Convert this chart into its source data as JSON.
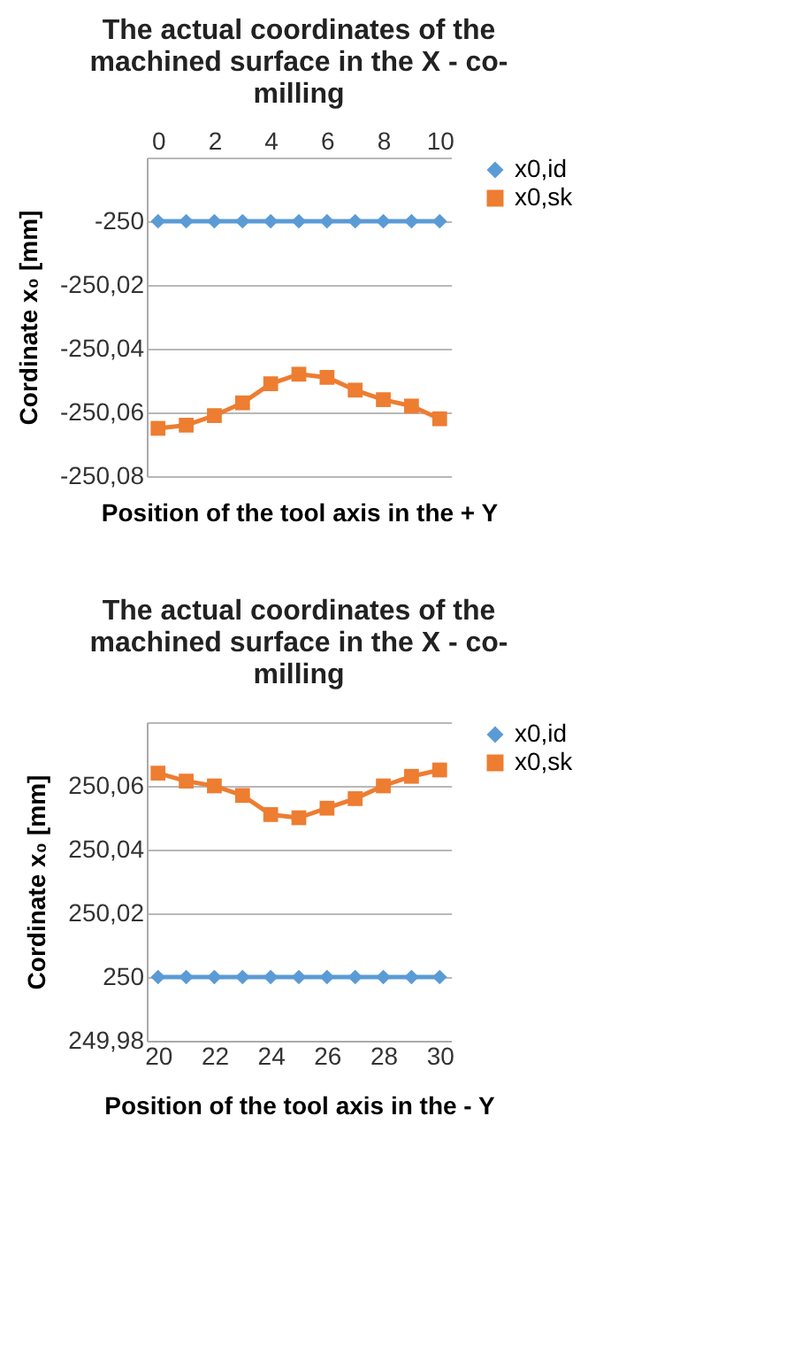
{
  "chart_data": [
    {
      "type": "line",
      "title": "The actual coordinates of the machined surface in the X - co-milling",
      "xlabel": "Position of the tool axis in the + Y",
      "ylabel": "Cordinate x₀ [mm]",
      "x": [
        0,
        1,
        2,
        3,
        4,
        5,
        6,
        7,
        8,
        9,
        10
      ],
      "xlim": [
        -0.4,
        10.4
      ],
      "xticks": [
        0,
        2,
        4,
        6,
        8,
        10
      ],
      "ylim": [
        -250.08,
        -249.98
      ],
      "yticks": [
        {
          "value": -249.98,
          "label": null
        },
        -250,
        {
          "value": -250.02,
          "label": "-250,02"
        },
        {
          "value": -250.04,
          "label": "-250,04"
        },
        {
          "value": -250.06,
          "label": "-250,06"
        },
        {
          "value": -250.08,
          "label": "-250,08"
        }
      ],
      "grid": "y",
      "legend": "right",
      "line_style": "solid",
      "series": [
        {
          "name": "x0,id",
          "color": "#5b9bd5",
          "marker": "diamond",
          "values": [
            -250,
            -250,
            -250,
            -250,
            -250,
            -250,
            -250,
            -250,
            -250,
            -250,
            -250
          ]
        },
        {
          "name": "x0,sk",
          "color": "#ed7d31",
          "marker": "square",
          "values": [
            -250.065,
            -250.064,
            -250.061,
            -250.057,
            -250.051,
            -250.048,
            -250.049,
            -250.053,
            -250.056,
            -250.058,
            -250.062
          ]
        }
      ]
    },
    {
      "type": "line",
      "title": "The actual coordinates of the machined surface in the X - co-milling",
      "xlabel": "Position of the tool axis in the - Y",
      "ylabel": "Cordinate x₀ [mm]",
      "x": [
        20,
        21,
        22,
        23,
        24,
        25,
        26,
        27,
        28,
        29,
        30
      ],
      "xlim": [
        19.6,
        30.4
      ],
      "xticks": [
        20,
        22,
        24,
        26,
        28,
        30
      ],
      "ylim": [
        249.98,
        250.08
      ],
      "yticks": [
        {
          "value": 249.98,
          "label": "249,98"
        },
        250,
        {
          "value": 250.02,
          "label": "250,02"
        },
        {
          "value": 250.04,
          "label": "250,04"
        },
        {
          "value": 250.06,
          "label": "250,06"
        },
        {
          "value": 250.08,
          "label": null
        }
      ],
      "grid": "y",
      "legend": "right",
      "line_style": "solid",
      "series": [
        {
          "name": "x0,id",
          "color": "#5b9bd5",
          "marker": "diamond",
          "values": [
            250,
            250,
            250,
            250,
            250,
            250,
            250,
            250,
            250,
            250,
            250
          ]
        },
        {
          "name": "x0,sk",
          "color": "#ed7d31",
          "marker": "square",
          "values": [
            250.064,
            250.0615,
            250.06,
            250.057,
            250.051,
            250.05,
            250.053,
            250.056,
            250.06,
            250.063,
            250.065
          ]
        }
      ]
    }
  ]
}
